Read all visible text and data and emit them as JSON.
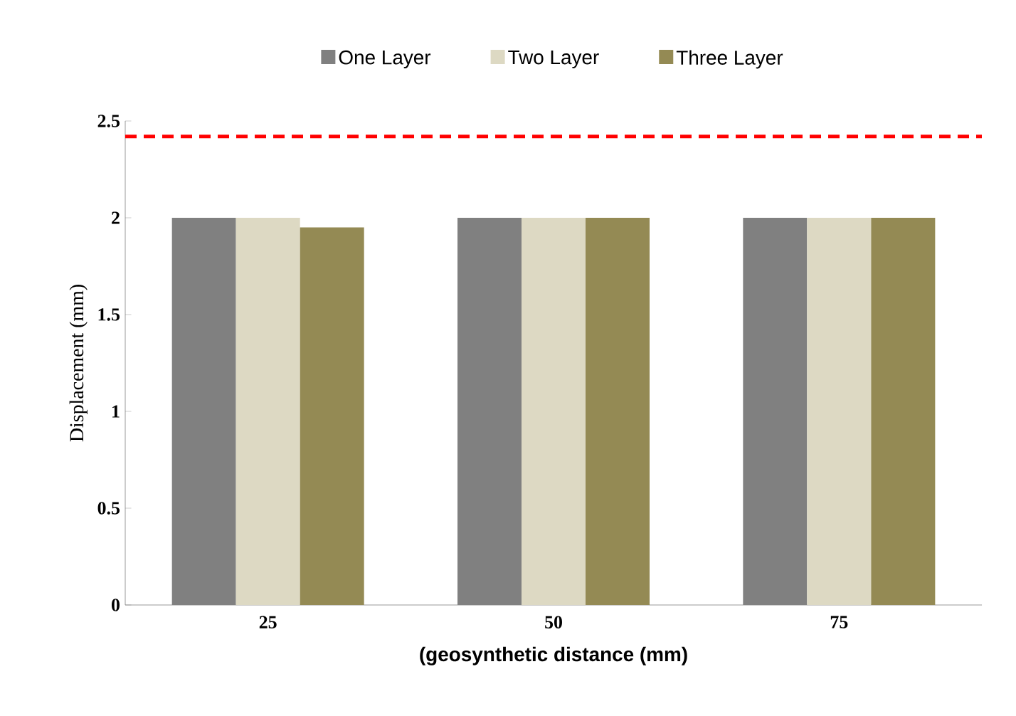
{
  "chart_data": {
    "type": "bar",
    "xlabel": "(geosynthetic distance (mm)",
    "ylabel": "Displacement (mm)",
    "categories": [
      "25",
      "50",
      "75"
    ],
    "series": [
      {
        "name": "One Layer",
        "color": "#808080",
        "values": [
          2,
          2,
          2
        ]
      },
      {
        "name": "Two Layer",
        "color": "#ddd9c3",
        "values": [
          2,
          2,
          2
        ]
      },
      {
        "name": "Three Layer",
        "color": "#948a54",
        "values": [
          1.95,
          2,
          2
        ]
      }
    ],
    "ylim": [
      0,
      2.5
    ],
    "yticks": [
      0,
      0.5,
      1,
      1.5,
      2,
      2.5
    ],
    "ref_lines": [
      {
        "axis": "y",
        "value": 2.42,
        "color": "#ff0000",
        "line_style": "dashed"
      }
    ],
    "legend": "top",
    "grid": false
  }
}
